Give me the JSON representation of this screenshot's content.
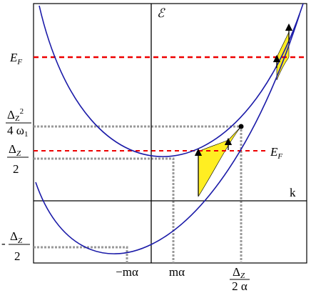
{
  "axes": {
    "energy": "ℰ",
    "momentum": "k"
  },
  "fermi_left": {
    "base": "E",
    "sub": "F"
  },
  "fermi_right": {
    "base": "E",
    "sub": "F"
  },
  "label_crossing": {
    "num": {
      "base": "Δ",
      "sub": "Z",
      "sup": "2"
    },
    "den": {
      "base": "4 ω",
      "sub": "1"
    }
  },
  "label_half_zeeman": {
    "num": {
      "base": "Δ",
      "sub": "Z"
    },
    "den": "2"
  },
  "label_neg_half_zeeman": {
    "sign": "-",
    "num": {
      "base": "Δ",
      "sub": "Z"
    },
    "den": "2"
  },
  "label_neg_m_alpha": "−mα",
  "label_m_alpha": "mα",
  "label_k_cross": {
    "num": {
      "base": "Δ",
      "sub": "Z"
    },
    "den": "2 α"
  }
}
